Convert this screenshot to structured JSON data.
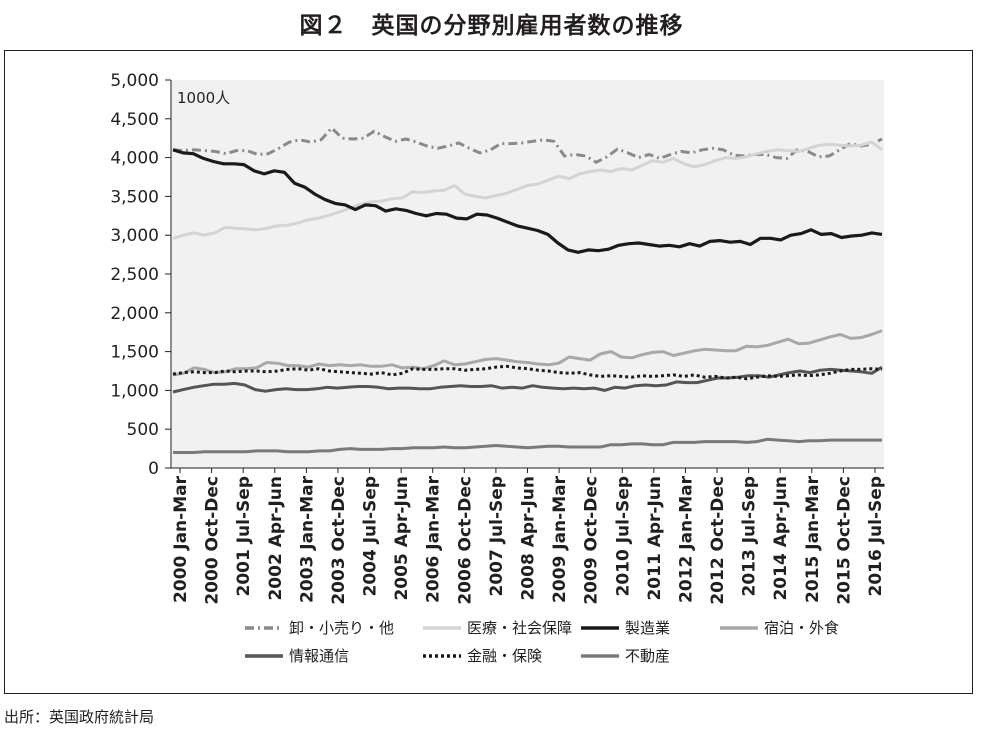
{
  "title": "図２　英国の分野別雇用者数の推移",
  "source": "出所：英国政府統計局",
  "chart_data": {
    "type": "line",
    "unit_label": "1000人",
    "ylim": [
      0,
      5000
    ],
    "yticks": [
      0,
      500,
      1000,
      1500,
      2000,
      2500,
      3000,
      3500,
      4000,
      4500,
      5000
    ],
    "ytick_labels": [
      "0",
      "500",
      "1,000",
      "1,500",
      "2,000",
      "2,500",
      "3,000",
      "3,500",
      "4,000",
      "4,500",
      "5,000"
    ],
    "xtick_labels": [
      "2000 Jan-Mar",
      "2000 Oct-Dec",
      "2001 Jul-Sep",
      "2002 Apr-Jun",
      "2003 Jan-Mar",
      "2003 Oct-Dec",
      "2004 Jul-Sep",
      "2005 Apr-Jun",
      "2006 Jan-Mar",
      "2006 Oct-Dec",
      "2007 Jul-Sep",
      "2008 Apr-Jun",
      "2009 Jan-Mar",
      "2009 Oct-Dec",
      "2010 Jul-Sep",
      "2011 Apr-Jun",
      "2012 Jan-Mar",
      "2012 Oct-Dec",
      "2013 Jul-Sep",
      "2014 Apr-Jun",
      "2015 Jan-Mar",
      "2015 Oct-Dec",
      "2016 Jul-Sep"
    ],
    "grid": false,
    "legend_position": "bottom",
    "series": [
      {
        "name": "卸・小売り・他",
        "color": "#8a8a8a",
        "style": "dashdot",
        "values": [
          4100,
          4090,
          4100,
          4090,
          4080,
          4050,
          4090,
          4090,
          4040,
          4050,
          4120,
          4200,
          4230,
          4200,
          4230,
          4380,
          4250,
          4240,
          4250,
          4340,
          4270,
          4210,
          4240,
          4200,
          4150,
          4120,
          4150,
          4190,
          4120,
          4060,
          4100,
          4180,
          4180,
          4190,
          4210,
          4230,
          4210,
          4020,
          4040,
          4020,
          3940,
          4010,
          4110,
          4060,
          4000,
          4040,
          3990,
          4040,
          4080,
          4060,
          4100,
          4120,
          4100,
          4030,
          4020,
          4040,
          4040,
          4000,
          3990,
          4100,
          4080,
          4010,
          4020,
          4100,
          4180,
          4150,
          4170,
          4240
        ]
      },
      {
        "name": "医療・社会保障",
        "color": "#d4d4d4",
        "style": "solid",
        "values": [
          2960,
          3000,
          3030,
          3000,
          3030,
          3100,
          3090,
          3080,
          3070,
          3090,
          3120,
          3130,
          3160,
          3200,
          3220,
          3260,
          3300,
          3350,
          3400,
          3430,
          3440,
          3470,
          3480,
          3560,
          3550,
          3570,
          3580,
          3640,
          3530,
          3500,
          3480,
          3510,
          3540,
          3590,
          3640,
          3660,
          3710,
          3760,
          3730,
          3790,
          3820,
          3840,
          3820,
          3860,
          3840,
          3900,
          3960,
          3940,
          3990,
          3920,
          3880,
          3910,
          3960,
          4000,
          3990,
          4010,
          4050,
          4080,
          4100,
          4090,
          4080,
          4120,
          4160,
          4170,
          4160,
          4150,
          4160,
          4200,
          4100
        ]
      },
      {
        "name": "製造業",
        "color": "#1a1a1a",
        "style": "solid",
        "values": [
          4100,
          4060,
          4050,
          3990,
          3950,
          3920,
          3920,
          3910,
          3830,
          3790,
          3830,
          3810,
          3670,
          3620,
          3530,
          3460,
          3410,
          3390,
          3330,
          3390,
          3380,
          3310,
          3340,
          3320,
          3280,
          3250,
          3280,
          3270,
          3220,
          3210,
          3270,
          3260,
          3220,
          3170,
          3120,
          3090,
          3060,
          3010,
          2900,
          2810,
          2780,
          2810,
          2800,
          2820,
          2870,
          2890,
          2900,
          2880,
          2860,
          2870,
          2850,
          2890,
          2860,
          2920,
          2930,
          2910,
          2920,
          2880,
          2960,
          2960,
          2940,
          3000,
          3020,
          3070,
          3010,
          3020,
          2970,
          2990,
          3000,
          3030,
          3010
        ]
      },
      {
        "name": "宿泊・外食",
        "color": "#a8a8a8",
        "style": "solid",
        "values": [
          1200,
          1220,
          1290,
          1270,
          1230,
          1240,
          1280,
          1280,
          1290,
          1360,
          1350,
          1320,
          1320,
          1300,
          1340,
          1320,
          1330,
          1320,
          1330,
          1310,
          1310,
          1330,
          1290,
          1300,
          1280,
          1320,
          1380,
          1330,
          1340,
          1370,
          1400,
          1410,
          1390,
          1370,
          1360,
          1340,
          1330,
          1350,
          1430,
          1410,
          1390,
          1470,
          1500,
          1430,
          1420,
          1460,
          1490,
          1500,
          1450,
          1480,
          1510,
          1530,
          1520,
          1510,
          1510,
          1570,
          1560,
          1580,
          1620,
          1660,
          1600,
          1610,
          1650,
          1690,
          1720,
          1670,
          1680,
          1720,
          1770
        ]
      },
      {
        "name": "情報通信",
        "color": "#555555",
        "style": "solid",
        "values": [
          980,
          1010,
          1040,
          1060,
          1080,
          1080,
          1090,
          1070,
          1010,
          990,
          1010,
          1020,
          1010,
          1010,
          1020,
          1040,
          1030,
          1040,
          1050,
          1050,
          1040,
          1020,
          1030,
          1030,
          1020,
          1020,
          1040,
          1050,
          1060,
          1050,
          1050,
          1060,
          1030,
          1040,
          1030,
          1060,
          1040,
          1030,
          1020,
          1030,
          1020,
          1030,
          1000,
          1040,
          1030,
          1060,
          1070,
          1060,
          1070,
          1110,
          1100,
          1100,
          1130,
          1160,
          1160,
          1170,
          1190,
          1190,
          1170,
          1200,
          1230,
          1250,
          1230,
          1260,
          1270,
          1260,
          1250,
          1240,
          1220,
          1300
        ]
      },
      {
        "name": "金融・保険",
        "color": "#1a1a1a",
        "style": "dotted",
        "values": [
          1210,
          1230,
          1240,
          1230,
          1230,
          1250,
          1240,
          1250,
          1250,
          1240,
          1250,
          1270,
          1280,
          1260,
          1280,
          1250,
          1240,
          1230,
          1220,
          1210,
          1230,
          1200,
          1220,
          1280,
          1270,
          1270,
          1280,
          1280,
          1260,
          1270,
          1280,
          1300,
          1310,
          1290,
          1280,
          1260,
          1250,
          1230,
          1220,
          1230,
          1200,
          1180,
          1190,
          1180,
          1170,
          1190,
          1180,
          1190,
          1200,
          1180,
          1200,
          1170,
          1180,
          1160,
          1170,
          1150,
          1170,
          1190,
          1180,
          1190,
          1200,
          1190,
          1200,
          1220,
          1250,
          1270,
          1270,
          1280,
          1270
        ]
      },
      {
        "name": "不動産",
        "color": "#7a7a7a",
        "style": "solid",
        "values": [
          200,
          200,
          200,
          210,
          210,
          210,
          210,
          210,
          220,
          220,
          220,
          210,
          210,
          210,
          220,
          220,
          240,
          250,
          240,
          240,
          240,
          250,
          250,
          260,
          260,
          260,
          270,
          260,
          260,
          270,
          280,
          290,
          280,
          270,
          260,
          270,
          280,
          280,
          270,
          270,
          270,
          270,
          300,
          300,
          310,
          310,
          300,
          300,
          330,
          330,
          330,
          340,
          340,
          340,
          340,
          330,
          340,
          370,
          360,
          350,
          340,
          350,
          350,
          360,
          360,
          360,
          360,
          360,
          360
        ]
      }
    ]
  }
}
